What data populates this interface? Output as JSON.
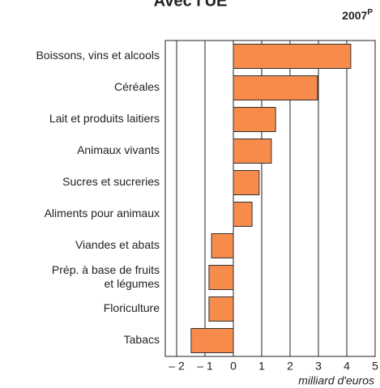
{
  "chart_data": {
    "type": "hbar",
    "title": "Avec l'UE",
    "subtitle": {
      "text": "2007",
      "superscript": "P"
    },
    "x_label": "milliard d'euros",
    "categories": [
      "Boissons, vins et alcools",
      "Céréales",
      "Lait et produits laitiers",
      "Animaux vivants",
      "Sucres et sucreries",
      "Aliments pour animaux",
      "Viandes et abats",
      "Prép. à base de fruits\net légumes",
      "Floriculture",
      "Tabacs"
    ],
    "values": [
      4.14,
      2.97,
      1.49,
      1.34,
      0.91,
      0.66,
      -0.77,
      -0.86,
      -0.86,
      -1.49
    ],
    "color": "#f68b4c",
    "xlim": [
      -2.4,
      5
    ],
    "xticks": [
      {
        "value": -2,
        "label": "– 2"
      },
      {
        "value": -1,
        "label": "– 1"
      },
      0,
      1,
      2,
      3,
      4,
      5
    ],
    "grid": true
  }
}
